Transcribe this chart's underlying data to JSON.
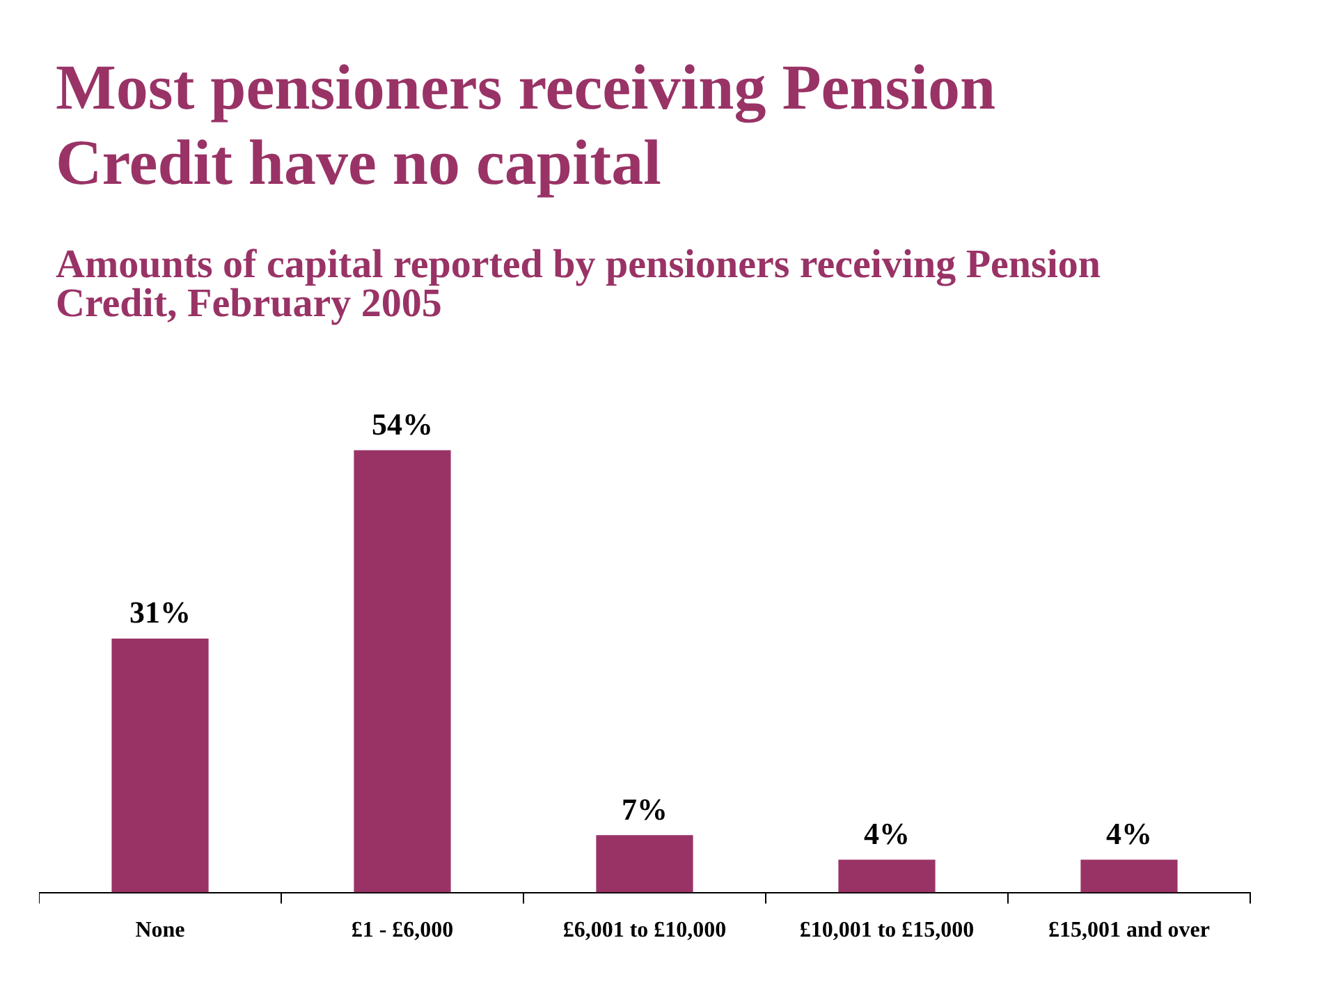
{
  "chart_data": {
    "type": "bar",
    "title": "Most pensioners receiving Pension Credit have no capital",
    "subtitle": "Amounts of capital reported by pensioners receiving Pension Credit, February 2005",
    "categories": [
      "None",
      "£1 - £6,000",
      "£6,001 to £10,000",
      "£10,001 to £15,000",
      "£15,001 and over"
    ],
    "values": [
      31,
      54,
      7,
      4,
      4
    ],
    "value_labels": [
      "31%",
      "54%",
      "7%",
      "4%",
      "4%"
    ],
    "color": "#993366",
    "grid": false,
    "legend": false,
    "tick_labels": "x"
  }
}
